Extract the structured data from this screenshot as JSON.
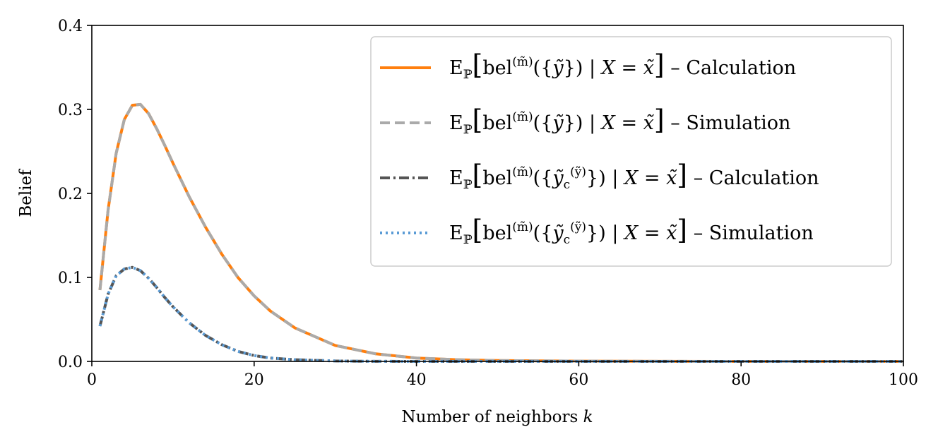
{
  "chart_data": {
    "type": "line",
    "title": "",
    "xlabel": "Number of neighbors",
    "xlabel_var": "k",
    "ylabel": "Belief",
    "xlim": [
      0,
      100
    ],
    "ylim": [
      0,
      0.4
    ],
    "x_ticks": [
      0,
      20,
      40,
      60,
      80,
      100
    ],
    "y_ticks": [
      0.0,
      0.1,
      0.2,
      0.3,
      0.4
    ],
    "y_tick_labels": [
      "0.0",
      "0.1",
      "0.2",
      "0.3",
      "0.4"
    ],
    "grid": false,
    "legend_position": "top-right",
    "x": [
      1,
      2,
      3,
      4,
      5,
      6,
      7,
      8,
      9,
      10,
      12,
      14,
      16,
      18,
      20,
      22,
      25,
      30,
      35,
      40,
      45,
      50,
      60,
      70,
      80,
      90,
      100
    ],
    "series": [
      {
        "name": "E_P[bel^(m̃)({ỹ}) | X = x̃] – Calculation",
        "legend_text": "– Calculation",
        "legend_set": "{ỹ}",
        "color": "#ff7f0e",
        "style": "solid",
        "values": [
          0.085,
          0.18,
          0.248,
          0.288,
          0.305,
          0.306,
          0.295,
          0.277,
          0.257,
          0.236,
          0.196,
          0.16,
          0.128,
          0.1,
          0.078,
          0.06,
          0.04,
          0.019,
          0.009,
          0.004,
          0.002,
          0.001,
          0.0003,
          0.0001,
          0.0,
          0.0,
          0.0
        ]
      },
      {
        "name": "E_P[bel^(m̃)({ỹ}) | X = x̃] – Simulation",
        "legend_text": "– Simulation",
        "legend_set": "{ỹ}",
        "color": "#aaaaaa",
        "style": "dashed",
        "values": [
          0.085,
          0.18,
          0.248,
          0.288,
          0.305,
          0.306,
          0.295,
          0.277,
          0.257,
          0.236,
          0.196,
          0.16,
          0.128,
          0.1,
          0.078,
          0.06,
          0.04,
          0.019,
          0.009,
          0.004,
          0.002,
          0.001,
          0.0003,
          0.0001,
          0.0,
          0.0,
          0.0
        ]
      },
      {
        "name": "E_P[bel^(m̃)({ỹc^(ỹ)}) | X = x̃] – Calculation",
        "legend_text": "– Calculation",
        "legend_set": "{ỹc(ỹ)}",
        "color": "#555555",
        "style": "dashdot",
        "values": [
          0.042,
          0.08,
          0.102,
          0.11,
          0.112,
          0.108,
          0.099,
          0.088,
          0.076,
          0.065,
          0.046,
          0.031,
          0.02,
          0.012,
          0.007,
          0.004,
          0.002,
          0.0005,
          0.0001,
          0.0,
          0.0,
          0.0,
          0.0,
          0.0,
          0.0,
          0.0,
          0.0
        ]
      },
      {
        "name": "E_P[bel^(m̃)({ỹc^(ỹ)}) | X = x̃] – Simulation",
        "legend_text": "– Simulation",
        "legend_set": "{ỹc(ỹ)}",
        "color": "#5a9bd5",
        "style": "dotted",
        "values": [
          0.042,
          0.08,
          0.102,
          0.11,
          0.112,
          0.108,
          0.099,
          0.088,
          0.076,
          0.065,
          0.046,
          0.031,
          0.02,
          0.012,
          0.007,
          0.004,
          0.002,
          0.0005,
          0.0001,
          0.0,
          0.0,
          0.0,
          0.0,
          0.0,
          0.0,
          0.0,
          0.0
        ]
      }
    ]
  }
}
